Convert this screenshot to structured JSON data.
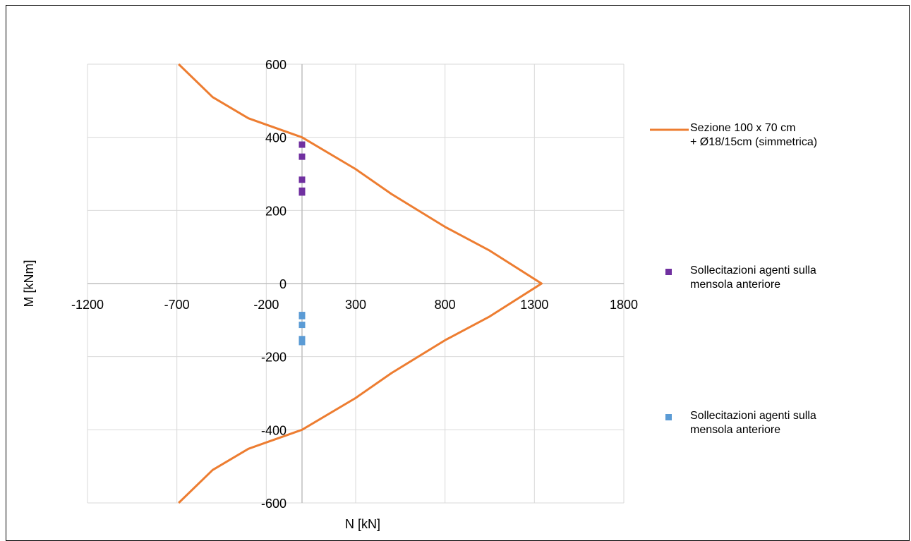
{
  "chart_data": {
    "type": "scatter",
    "title": "",
    "xlabel": "N [kN]",
    "ylabel": "M [kNm]",
    "xlim": [
      -1200,
      1800
    ],
    "ylim": [
      -600,
      600
    ],
    "x_ticks": [
      -1200,
      -700,
      -200,
      300,
      800,
      1300,
      1800
    ],
    "y_ticks": [
      -600,
      -400,
      -200,
      0,
      200,
      400,
      600
    ],
    "grid": true,
    "legend_position": "right",
    "series": [
      {
        "name": "Sezione 100 x 70 cm\n+ Ø18/15cm (simmetrica)",
        "kind": "line",
        "color": "#ED7D31",
        "x": [
          -690,
          -500,
          -300,
          0,
          300,
          500,
          800,
          1050,
          1340,
          1050,
          800,
          500,
          300,
          0,
          -300,
          -500,
          -690
        ],
        "y": [
          600,
          510,
          452,
          400,
          313,
          245,
          155,
          90,
          0,
          -90,
          -155,
          -245,
          -313,
          -400,
          -452,
          -510,
          -600
        ]
      },
      {
        "name": "Sollecitazioni agenti sulla\nmensola anteriore",
        "kind": "scatter",
        "color": "#7030A0",
        "x": [
          0,
          0,
          0,
          0,
          0
        ],
        "y": [
          380,
          347,
          284,
          254,
          249
        ]
      },
      {
        "name": "Sollecitazioni agenti sulla\nmensola anteriore",
        "kind": "scatter",
        "color": "#5B9BD5",
        "x": [
          0,
          0,
          0,
          0,
          0
        ],
        "y": [
          -86,
          -89,
          -113,
          -152,
          -160
        ]
      }
    ]
  }
}
